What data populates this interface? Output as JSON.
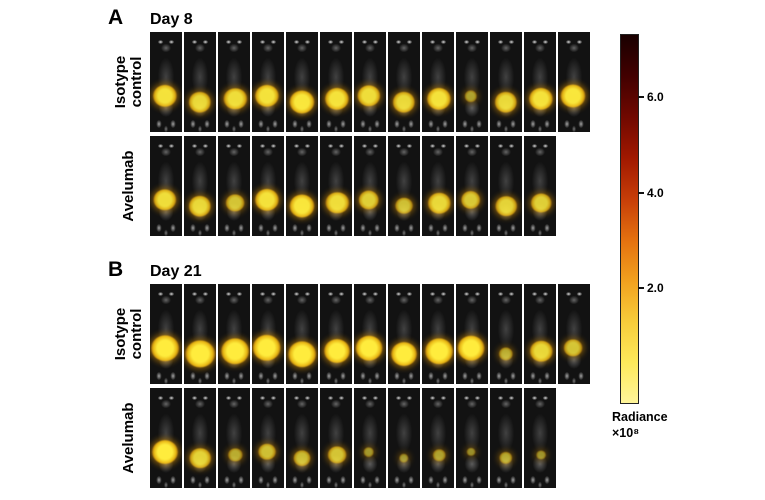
{
  "figure": {
    "panels": [
      {
        "letter": "A",
        "title": "Day 8",
        "rows": [
          {
            "label": "Isotype control",
            "mice": [
              0.9,
              0.8,
              0.85,
              0.9,
              0.95,
              0.9,
              0.85,
              0.8,
              0.9,
              0.25,
              0.8,
              0.9,
              0.95
            ]
          },
          {
            "label": "Avelumab",
            "mice": [
              0.85,
              0.8,
              0.6,
              0.9,
              0.95,
              0.85,
              0.7,
              0.55,
              0.8,
              0.65,
              0.75,
              0.7
            ]
          }
        ]
      },
      {
        "letter": "B",
        "title": "Day 21",
        "rows": [
          {
            "label": "Isotype control",
            "mice": [
              1.1,
              1.2,
              1.1,
              1.15,
              1.1,
              1.0,
              1.05,
              1.0,
              1.1,
              1.05,
              0.35,
              0.8,
              0.6
            ]
          },
          {
            "label": "Avelumab",
            "mice": [
              1.0,
              0.75,
              0.35,
              0.55,
              0.5,
              0.6,
              0.15,
              0.08,
              0.25,
              0.05,
              0.3,
              0.1
            ]
          }
        ]
      }
    ],
    "colorbar": {
      "ticks": [
        "6.0",
        "4.0",
        "2.0"
      ],
      "label_line1": "Radiance",
      "label_line2": "×10⁸",
      "gradient_stops": [
        "#190000",
        "#420000",
        "#700800",
        "#a01800",
        "#c63d08",
        "#e4700f",
        "#f1a01e",
        "#f7cc3a",
        "#fde95a",
        "#fff59a"
      ]
    }
  }
}
